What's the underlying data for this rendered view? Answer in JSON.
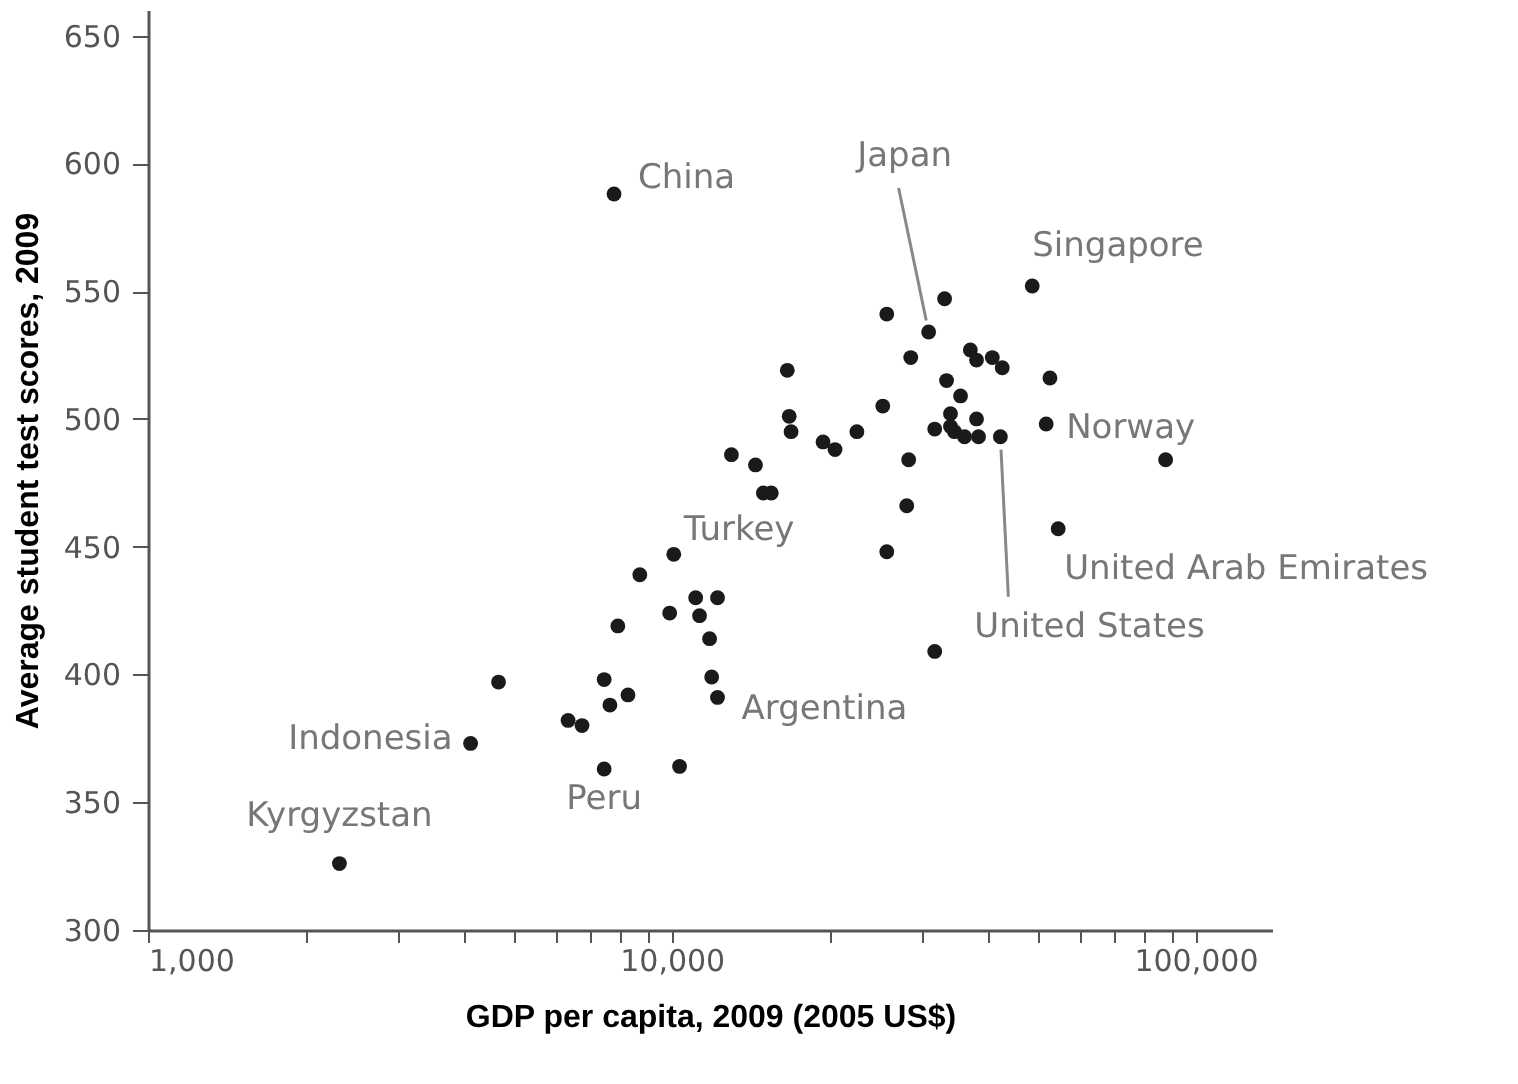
{
  "chart_data": {
    "type": "scatter",
    "xlabel": "GDP per capita, 2009 (2005 US$)",
    "ylabel": "Average student test scores, 2009",
    "log": "x",
    "grid": false,
    "marker": "circle",
    "xlim": [
      1000,
      140000
    ],
    "ylim": [
      300,
      660
    ],
    "xticks": [
      {
        "value": 1000,
        "label": "1,000"
      },
      {
        "value": 2000,
        "label": null
      },
      {
        "value": 3000,
        "label": null
      },
      {
        "value": 4000,
        "label": null
      },
      {
        "value": 5000,
        "label": null
      },
      {
        "value": 6000,
        "label": null
      },
      {
        "value": 7000,
        "label": null
      },
      {
        "value": 8000,
        "label": null
      },
      {
        "value": 9000,
        "label": null
      },
      {
        "value": 10000,
        "label": "10,000"
      },
      {
        "value": 20000,
        "label": null
      },
      {
        "value": 30000,
        "label": null
      },
      {
        "value": 40000,
        "label": null
      },
      {
        "value": 50000,
        "label": null
      },
      {
        "value": 60000,
        "label": null
      },
      {
        "value": 70000,
        "label": null
      },
      {
        "value": 80000,
        "label": null
      },
      {
        "value": 90000,
        "label": null
      },
      {
        "value": 100000,
        "label": "100,000"
      }
    ],
    "yticks": [
      300,
      350,
      400,
      450,
      500,
      550,
      600,
      650
    ],
    "series": [
      {
        "color": "#1a1a1a",
        "x": [
          7890,
          4670,
          7430,
          8250,
          7620,
          6340,
          6740,
          4130,
          7430,
          2320,
          16760,
          16900,
          19450,
          20500,
          22570,
          25290,
          13000,
          14450,
          14960,
          15490,
          10090,
          8690,
          11110,
          12230,
          9910,
          11300,
          11810,
          11920,
          12230,
          10350,
          25740,
          33190,
          25740,
          48790,
          30940,
          28600,
          37170,
          38190,
          40930,
          42760,
          16620,
          52740,
          33480,
          35600,
          31780,
          34060,
          34060,
          34670,
          38190,
          36230,
          38530,
          42410,
          51870,
          87700,
          28340,
          28100,
          54690,
          31780,
          7760
        ],
        "values": [
          419,
          397,
          398,
          392,
          388,
          382,
          380,
          373,
          363,
          326,
          501,
          495,
          491,
          488,
          495,
          505,
          486,
          482,
          471,
          471,
          447,
          439,
          430,
          430,
          424,
          423,
          414,
          399,
          391,
          364,
          448,
          547,
          541,
          552,
          534,
          524,
          527,
          523,
          524,
          520,
          519,
          516,
          515,
          509,
          496,
          502,
          497,
          495,
          500,
          493,
          493,
          493,
          498,
          484,
          484,
          466,
          457,
          409,
          588
        ]
      }
    ],
    "annotations": [
      {
        "text": "China",
        "x": 7760,
        "y": 588
      },
      {
        "text": "Japan",
        "x": 30940,
        "y": 534
      },
      {
        "text": "Singapore",
        "x": 48790,
        "y": 552
      },
      {
        "text": "Norway",
        "x": 51870,
        "y": 498
      },
      {
        "text": "United Arab Emirates",
        "x": 54690,
        "y": 457
      },
      {
        "text": "United States",
        "x": 42410,
        "y": 493
      },
      {
        "text": "Turkey",
        "x": 10090,
        "y": 447
      },
      {
        "text": "Argentina",
        "x": 12230,
        "y": 391
      },
      {
        "text": "Peru",
        "x": 7430,
        "y": 363
      },
      {
        "text": "Indonesia",
        "x": 4130,
        "y": 373
      },
      {
        "text": "Kyrgyzstan",
        "x": 2320,
        "y": 326
      }
    ]
  }
}
